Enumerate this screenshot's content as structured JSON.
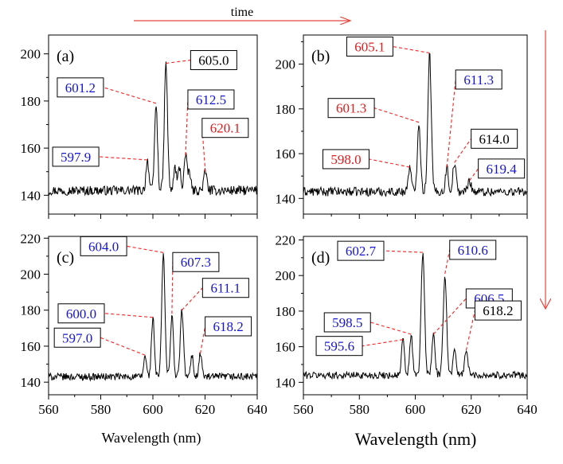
{
  "figure": {
    "arrow_label": "time",
    "arrow_color": "#e8453c",
    "xlabel_left": "Wavelength (nm)",
    "xlabel_right": "Wavelength (nm)"
  },
  "chart_data": [
    {
      "panel": "(a)",
      "type": "line",
      "xlim": [
        560,
        640
      ],
      "ylim": [
        132,
        208
      ],
      "x_ticks": [
        560,
        580,
        600,
        620,
        640
      ],
      "y_ticks": [
        140,
        160,
        180,
        200
      ],
      "x_tick_labels": [
        "",
        "",
        "",
        "",
        ""
      ],
      "y_tick_labels": [
        "140",
        "160",
        "180",
        "200"
      ],
      "baseline": 142,
      "noise": 2.0,
      "peaks": [
        {
          "x": 597.9,
          "y": 155,
          "w": 0.55
        },
        {
          "x": 601.2,
          "y": 179,
          "w": 0.55
        },
        {
          "x": 605.0,
          "y": 196,
          "w": 0.6
        },
        {
          "x": 608.5,
          "y": 152,
          "w": 0.5
        },
        {
          "x": 610.2,
          "y": 152,
          "w": 0.5
        },
        {
          "x": 612.5,
          "y": 157,
          "w": 0.55
        },
        {
          "x": 614.0,
          "y": 150,
          "w": 0.5
        },
        {
          "x": 620.1,
          "y": 150,
          "w": 0.6
        }
      ],
      "annotations": [
        {
          "text": "597.9",
          "color": "#1515d8",
          "x": 597.9,
          "y": 155,
          "label_dx": -90,
          "label_dy": -4
        },
        {
          "text": "601.2",
          "color": "#1515d8",
          "x": 601.2,
          "y": 179,
          "label_dx": -95,
          "label_dy": -20
        },
        {
          "text": "605.0",
          "color": "#000000",
          "x": 605.0,
          "y": 196,
          "label_dx": 60,
          "label_dy": -4
        },
        {
          "text": "612.5",
          "color": "#1515d8",
          "x": 612.5,
          "y": 157,
          "label_dx": 32,
          "label_dy": -70
        },
        {
          "text": "620.1",
          "color": "#e41a1c",
          "x": 620.1,
          "y": 150,
          "label_dx": 25,
          "label_dy": -55
        }
      ]
    },
    {
      "panel": "(b)",
      "type": "line",
      "xlim": [
        560,
        640
      ],
      "ylim": [
        133,
        213
      ],
      "x_ticks": [
        560,
        580,
        600,
        620,
        640
      ],
      "y_ticks": [
        140,
        160,
        180,
        200
      ],
      "x_tick_labels": [
        "",
        "",
        "",
        "",
        ""
      ],
      "y_tick_labels": [
        "140",
        "160",
        "180",
        "200"
      ],
      "baseline": 143,
      "noise": 2.0,
      "peaks": [
        {
          "x": 598.0,
          "y": 154,
          "w": 0.55
        },
        {
          "x": 601.3,
          "y": 174,
          "w": 0.55
        },
        {
          "x": 605.1,
          "y": 205,
          "w": 0.6
        },
        {
          "x": 611.3,
          "y": 154,
          "w": 0.5
        },
        {
          "x": 614.0,
          "y": 156,
          "w": 0.55
        },
        {
          "x": 619.4,
          "y": 148,
          "w": 0.6
        }
      ],
      "annotations": [
        {
          "text": "605.1",
          "color": "#e41a1c",
          "x": 605.1,
          "y": 205,
          "label_dx": -75,
          "label_dy": -8
        },
        {
          "text": "611.3",
          "color": "#1515d8",
          "x": 611.3,
          "y": 154,
          "label_dx": 40,
          "label_dy": -110
        },
        {
          "text": "601.3",
          "color": "#e41a1c",
          "x": 601.3,
          "y": 174,
          "label_dx": -85,
          "label_dy": -18
        },
        {
          "text": "614.0",
          "color": "#000000",
          "x": 614.0,
          "y": 156,
          "label_dx": 50,
          "label_dy": -30
        },
        {
          "text": "598.0",
          "color": "#e41a1c",
          "x": 598.0,
          "y": 154,
          "label_dx": -80,
          "label_dy": -10
        },
        {
          "text": "619.4",
          "color": "#1515d8",
          "x": 619.4,
          "y": 148,
          "label_dx": 40,
          "label_dy": -15
        }
      ]
    },
    {
      "panel": "(c)",
      "type": "line",
      "xlim": [
        560,
        640
      ],
      "ylim": [
        133,
        221
      ],
      "x_ticks": [
        560,
        580,
        600,
        620,
        640
      ],
      "y_ticks": [
        140,
        160,
        180,
        200,
        220
      ],
      "x_tick_labels": [
        "560",
        "580",
        "600",
        "620",
        "640"
      ],
      "y_tick_labels": [
        "140",
        "160",
        "180",
        "200",
        "220"
      ],
      "baseline": 143,
      "noise": 2.0,
      "peaks": [
        {
          "x": 597.0,
          "y": 155,
          "w": 0.5
        },
        {
          "x": 600.0,
          "y": 176,
          "w": 0.55
        },
        {
          "x": 604.0,
          "y": 212,
          "w": 0.6
        },
        {
          "x": 607.3,
          "y": 178,
          "w": 0.55
        },
        {
          "x": 611.1,
          "y": 180,
          "w": 0.6
        },
        {
          "x": 615.0,
          "y": 155,
          "w": 0.5
        },
        {
          "x": 618.2,
          "y": 156,
          "w": 0.55
        }
      ],
      "annotations": [
        {
          "text": "597.0",
          "color": "#1515d8",
          "x": 597.0,
          "y": 155,
          "label_dx": -85,
          "label_dy": -22
        },
        {
          "text": "600.0",
          "color": "#1515d8",
          "x": 600.0,
          "y": 176,
          "label_dx": -90,
          "label_dy": -5
        },
        {
          "text": "604.0",
          "color": "#1515d8",
          "x": 604.0,
          "y": 212,
          "label_dx": -75,
          "label_dy": -8
        },
        {
          "text": "607.3",
          "color": "#1515d8",
          "x": 607.3,
          "y": 178,
          "label_dx": 30,
          "label_dy": -65
        },
        {
          "text": "611.1",
          "color": "#1515d8",
          "x": 611.1,
          "y": 180,
          "label_dx": 55,
          "label_dy": -28
        },
        {
          "text": "618.2",
          "color": "#1515d8",
          "x": 618.2,
          "y": 156,
          "label_dx": 35,
          "label_dy": -34
        }
      ]
    },
    {
      "panel": "(d)",
      "type": "line",
      "xlim": [
        560,
        640
      ],
      "ylim": [
        133,
        222
      ],
      "x_ticks": [
        560,
        580,
        600,
        620,
        640
      ],
      "y_ticks": [
        140,
        160,
        180,
        200,
        220
      ],
      "x_tick_labels": [
        "560",
        "580",
        "600",
        "620",
        "640"
      ],
      "y_tick_labels": [
        "140",
        "160",
        "180",
        "200",
        "220"
      ],
      "baseline": 144,
      "noise": 2.0,
      "peaks": [
        {
          "x": 595.6,
          "y": 164,
          "w": 0.5
        },
        {
          "x": 598.5,
          "y": 167,
          "w": 0.5
        },
        {
          "x": 602.7,
          "y": 213,
          "w": 0.6
        },
        {
          "x": 606.5,
          "y": 167,
          "w": 0.55
        },
        {
          "x": 610.6,
          "y": 201,
          "w": 0.6
        },
        {
          "x": 614.0,
          "y": 160,
          "w": 0.5
        },
        {
          "x": 618.2,
          "y": 158,
          "w": 0.6
        }
      ],
      "annotations": [
        {
          "text": "595.6",
          "color": "#1515d8",
          "x": 595.6,
          "y": 164,
          "label_dx": -80,
          "label_dy": 8
        },
        {
          "text": "598.5",
          "color": "#1515d8",
          "x": 598.5,
          "y": 167,
          "label_dx": -80,
          "label_dy": -15
        },
        {
          "text": "602.7",
          "color": "#1515d8",
          "x": 602.7,
          "y": 213,
          "label_dx": -78,
          "label_dy": -2
        },
        {
          "text": "606.5",
          "color": "#1515d8",
          "x": 606.5,
          "y": 167,
          "label_dx": 70,
          "label_dy": -45
        },
        {
          "text": "610.6",
          "color": "#1515d8",
          "x": 610.6,
          "y": 201,
          "label_dx": 35,
          "label_dy": -30
        },
        {
          "text": "618.2",
          "color": "#000000",
          "x": 618.2,
          "y": 158,
          "label_dx": 40,
          "label_dy": -50
        }
      ]
    }
  ]
}
